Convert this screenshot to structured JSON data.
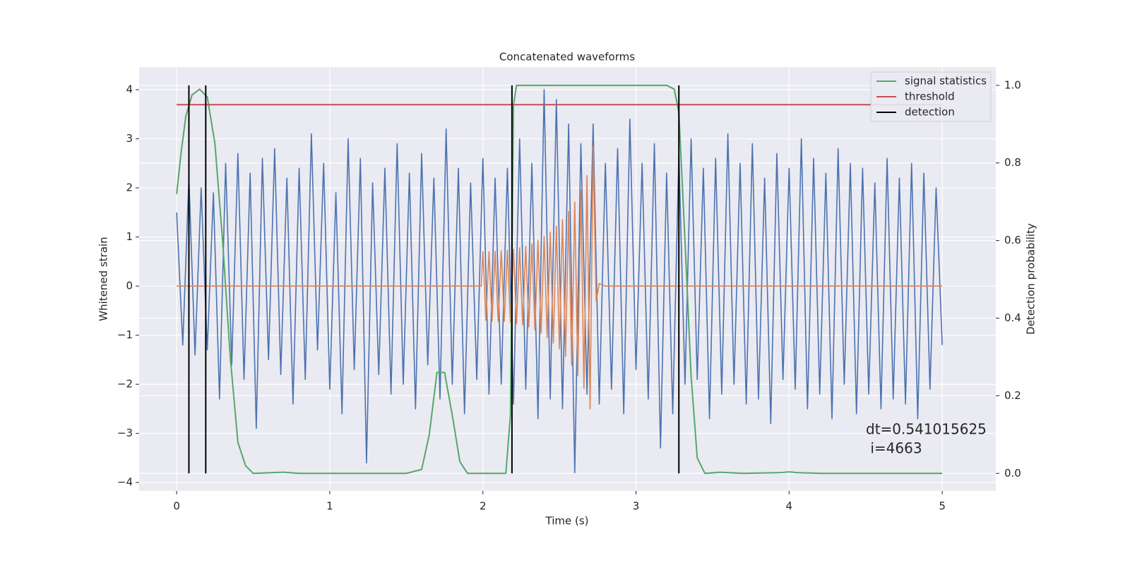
{
  "chart_data": {
    "type": "line",
    "title": "Concatenated waveforms",
    "xlabel": "Time (s)",
    "ylabel": "Whitened strain",
    "y2label": "Detection probability",
    "xlim": [
      -0.245,
      5.35
    ],
    "ylim": [
      -4.17,
      4.46
    ],
    "y2lim": [
      -0.045,
      1.047
    ],
    "xticks": [
      0,
      1,
      2,
      3,
      4,
      5
    ],
    "yticks": [
      {
        "value": -4,
        "label": "−4"
      },
      {
        "value": -3,
        "label": "−3"
      },
      {
        "value": -2,
        "label": "−2"
      },
      {
        "value": -1,
        "label": "−1"
      },
      0,
      1,
      2,
      3,
      4
    ],
    "y2ticks": [
      {
        "value": 0,
        "label": "0.0"
      },
      0.2,
      0.4,
      0.6,
      0.8,
      {
        "value": 1,
        "label": "1.0"
      }
    ],
    "grid": true,
    "legend": "upper right",
    "annotations": [
      "dt=0.541015625",
      " i=4663"
    ],
    "series": [
      {
        "color": "#4c72b0",
        "x": [
          0,
          0.04,
          0.08,
          0.12,
          0.16,
          0.2,
          0.24,
          0.28,
          0.32,
          0.36,
          0.4,
          0.44,
          0.48,
          0.52,
          0.56,
          0.6,
          0.64,
          0.68,
          0.72,
          0.76,
          0.8,
          0.84,
          0.88,
          0.92,
          0.96,
          1,
          1.04,
          1.08,
          1.12,
          1.16,
          1.2,
          1.24,
          1.28,
          1.32,
          1.36,
          1.4,
          1.44,
          1.48,
          1.52,
          1.56,
          1.6,
          1.64,
          1.68,
          1.72,
          1.76,
          1.8,
          1.84,
          1.88,
          1.92,
          1.96,
          2,
          2.04,
          2.08,
          2.12,
          2.16,
          2.2,
          2.24,
          2.28,
          2.32,
          2.36,
          2.4,
          2.44,
          2.48,
          2.52,
          2.56,
          2.6,
          2.64,
          2.68,
          2.72,
          2.76,
          2.8,
          2.84,
          2.88,
          2.92,
          2.96,
          3,
          3.04,
          3.08,
          3.12,
          3.16,
          3.2,
          3.24,
          3.28,
          3.32,
          3.36,
          3.4,
          3.44,
          3.48,
          3.52,
          3.56,
          3.6,
          3.64,
          3.68,
          3.72,
          3.76,
          3.8,
          3.84,
          3.88,
          3.92,
          3.96,
          4,
          4.04,
          4.08,
          4.12,
          4.16,
          4.2,
          4.24,
          4.28,
          4.32,
          4.36,
          4.4,
          4.44,
          4.48,
          4.52,
          4.56,
          4.6,
          4.64,
          4.68,
          4.72,
          4.76,
          4.8,
          4.84,
          4.88,
          4.92,
          4.96,
          5
        ],
        "values": [
          1.5,
          -1.2,
          2.2,
          -1.4,
          2.0,
          -1.3,
          1.9,
          -2.3,
          2.5,
          -1.6,
          2.7,
          -1.9,
          2.3,
          -2.9,
          2.6,
          -1.5,
          2.8,
          -1.8,
          2.2,
          -2.4,
          2.4,
          -1.9,
          3.1,
          -1.3,
          2.5,
          -2.1,
          1.9,
          -2.6,
          3.0,
          -1.7,
          2.6,
          -3.6,
          2.1,
          -1.8,
          2.4,
          -2.2,
          2.9,
          -2.0,
          2.3,
          -2.5,
          2.7,
          -1.6,
          2.2,
          -2.3,
          3.2,
          -2.0,
          2.4,
          -2.6,
          2.1,
          -1.9,
          2.6,
          -2.2,
          2.2,
          -2.0,
          2.4,
          -2.4,
          3.0,
          -2.1,
          2.5,
          -2.7,
          4.0,
          -2.3,
          3.8,
          -2.5,
          3.3,
          -3.8,
          2.9,
          -2.2,
          3.3,
          -2.4,
          2.5,
          -2.1,
          2.8,
          -2.6,
          3.4,
          -1.7,
          2.5,
          -2.3,
          2.9,
          -3.3,
          2.3,
          -2.6,
          2.7,
          -2.0,
          3.0,
          -1.9,
          2.4,
          -2.7,
          2.6,
          -2.2,
          3.1,
          -2.0,
          2.5,
          -2.4,
          2.9,
          -2.3,
          2.2,
          -2.8,
          2.7,
          -1.9,
          2.4,
          -2.1,
          3.0,
          -2.5,
          2.6,
          -2.2,
          2.3,
          -2.7,
          2.8,
          -2.0,
          2.5,
          -2.6,
          2.4,
          -2.2,
          2.1,
          -2.5,
          2.6,
          -2.3,
          2.2,
          -2.4,
          2.5,
          -2.7,
          2.3,
          -2.1,
          2.0,
          -1.2
        ]
      },
      {
        "color": "#dd8452",
        "x": [
          0,
          1.99,
          2,
          2.02,
          2.04,
          2.06,
          2.08,
          2.1,
          2.12,
          2.14,
          2.16,
          2.18,
          2.2,
          2.22,
          2.24,
          2.26,
          2.28,
          2.3,
          2.32,
          2.34,
          2.36,
          2.38,
          2.4,
          2.42,
          2.44,
          2.46,
          2.48,
          2.5,
          2.52,
          2.54,
          2.56,
          2.58,
          2.6,
          2.62,
          2.64,
          2.66,
          2.68,
          2.7,
          2.72,
          2.74,
          2.76,
          2.8,
          5
        ],
        "values": [
          0,
          0,
          0.7,
          -0.7,
          0.7,
          -0.71,
          0.71,
          -0.72,
          0.72,
          -0.72,
          0.73,
          -0.74,
          0.75,
          -0.76,
          0.78,
          -0.79,
          0.81,
          -0.83,
          0.86,
          -0.89,
          0.93,
          -0.96,
          1.01,
          -1.05,
          1.1,
          -1.16,
          1.22,
          -1.28,
          1.35,
          -1.43,
          1.52,
          -1.61,
          1.71,
          -1.82,
          1.95,
          -2.08,
          2.25,
          -2.5,
          2.85,
          -0.3,
          0.05,
          0,
          0
        ]
      },
      {
        "name": "signal statistics",
        "color": "#55a868",
        "axis": "y2",
        "x": [
          0,
          0.03,
          0.06,
          0.1,
          0.15,
          0.2,
          0.25,
          0.3,
          0.35,
          0.4,
          0.45,
          0.5,
          0.7,
          0.8,
          1.5,
          1.6,
          1.65,
          1.7,
          1.75,
          1.8,
          1.85,
          1.9,
          2.15,
          2.18,
          2.2,
          2.22,
          2.3,
          3.2,
          3.25,
          3.28,
          3.32,
          3.36,
          3.4,
          3.45,
          3.55,
          3.7,
          3.95,
          4,
          4.05,
          4.2,
          5
        ],
        "values": [
          0.72,
          0.83,
          0.92,
          0.975,
          0.99,
          0.97,
          0.85,
          0.6,
          0.3,
          0.08,
          0.02,
          0,
          0.003,
          0,
          0,
          0.01,
          0.1,
          0.26,
          0.26,
          0.15,
          0.03,
          0,
          0,
          0.15,
          0.95,
          1,
          1,
          1,
          0.99,
          0.93,
          0.6,
          0.25,
          0.04,
          0,
          0.003,
          0,
          0.002,
          0.004,
          0.002,
          0,
          0
        ]
      },
      {
        "name": "threshold",
        "color": "#c44e52",
        "axis": "y2",
        "x": [
          0,
          5
        ],
        "values": [
          0.95,
          0.95
        ]
      },
      {
        "name": "detection",
        "color": "#000000",
        "axis": "y2",
        "style": "vlines",
        "x": [
          0.08,
          0.19,
          2.19,
          3.28
        ]
      }
    ]
  }
}
